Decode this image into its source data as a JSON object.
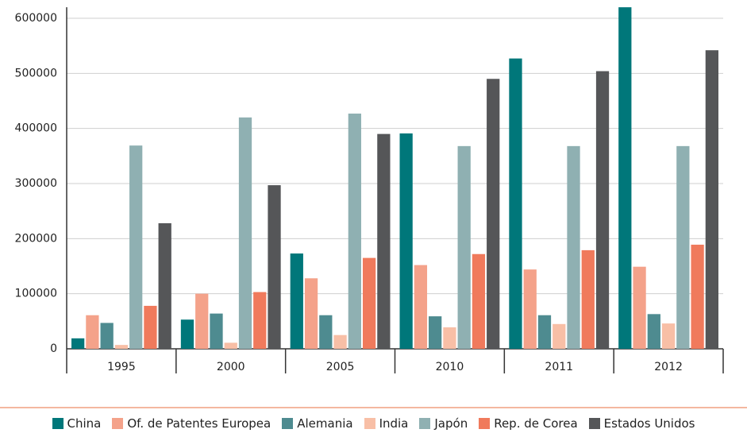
{
  "chart_data": {
    "type": "bar",
    "categories": [
      "1995",
      "2000",
      "2005",
      "2010",
      "2011",
      "2012"
    ],
    "series": [
      {
        "name": "China",
        "color": "#00777a",
        "values": [
          19000,
          53000,
          173000,
          391000,
          527000,
          620000
        ]
      },
      {
        "name": "Of. de Patentes Europea",
        "color": "#f4a28a",
        "values": [
          61000,
          100000,
          128000,
          152000,
          144000,
          149000
        ]
      },
      {
        "name": "Alemania",
        "color": "#4e8b90",
        "values": [
          47000,
          64000,
          61000,
          59000,
          61000,
          63000
        ]
      },
      {
        "name": "India",
        "color": "#f8bfa6",
        "values": [
          7000,
          11000,
          25000,
          39000,
          45000,
          46000
        ]
      },
      {
        "name": "Japón",
        "color": "#8fb0b2",
        "values": [
          369000,
          420000,
          427000,
          368000,
          368000,
          368000
        ]
      },
      {
        "name": "Rep. de Corea",
        "color": "#f07a5c",
        "values": [
          78000,
          103000,
          165000,
          172000,
          179000,
          189000
        ]
      },
      {
        "name": "Estados Unidos",
        "color": "#555658",
        "values": [
          228000,
          297000,
          390000,
          490000,
          504000,
          542000
        ]
      }
    ],
    "ylim": [
      0,
      620000
    ],
    "yticks": [
      0,
      100000,
      200000,
      300000,
      400000,
      500000,
      600000
    ],
    "grid": true,
    "legend": "bottom"
  }
}
